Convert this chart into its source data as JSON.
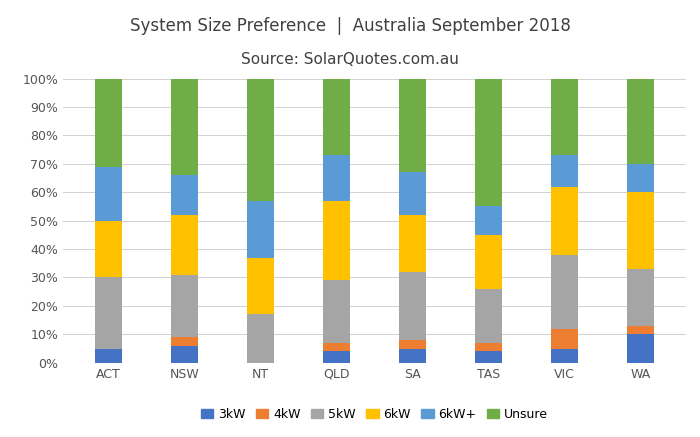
{
  "categories": [
    "ACT",
    "NSW",
    "NT",
    "QLD",
    "SA",
    "TAS",
    "VIC",
    "WA"
  ],
  "series": {
    "3kW": [
      5,
      6,
      0,
      4,
      5,
      4,
      5,
      10
    ],
    "4kW": [
      0,
      3,
      0,
      3,
      3,
      3,
      7,
      3
    ],
    "5kW": [
      25,
      22,
      17,
      22,
      24,
      19,
      26,
      20
    ],
    "6kW": [
      20,
      21,
      20,
      28,
      20,
      19,
      24,
      27
    ],
    "6kW+": [
      19,
      14,
      20,
      16,
      15,
      10,
      11,
      10
    ],
    "Unsure": [
      31,
      34,
      43,
      27,
      33,
      45,
      27,
      30
    ]
  },
  "colors": {
    "3kW": "#4472C4",
    "4kW": "#ED7D31",
    "5kW": "#A5A5A5",
    "6kW": "#FFC000",
    "6kW+": "#5B9BD5",
    "Unsure": "#70AD47"
  },
  "title_line1": "System Size Preference  |  Australia September 2018",
  "title_line2": "Source: SolarQuotes.com.au",
  "ylim": [
    0,
    100
  ],
  "ytick_labels": [
    "0%",
    "10%",
    "20%",
    "30%",
    "40%",
    "50%",
    "60%",
    "70%",
    "80%",
    "90%",
    "100%"
  ],
  "ytick_values": [
    0,
    10,
    20,
    30,
    40,
    50,
    60,
    70,
    80,
    90,
    100
  ],
  "background_color": "#ffffff",
  "grid_color": "#d0d0d0",
  "title_fontsize": 12,
  "subtitle_fontsize": 11,
  "legend_fontsize": 9,
  "tick_fontsize": 9,
  "bar_width": 0.35
}
